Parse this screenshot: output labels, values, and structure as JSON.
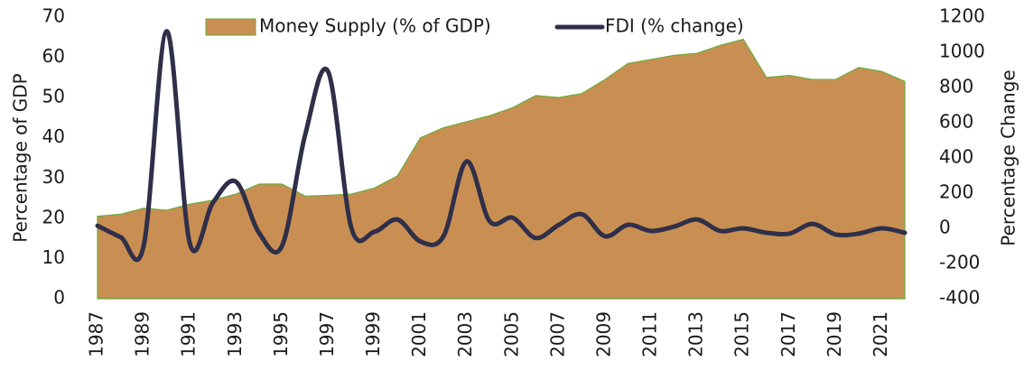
{
  "chart_data": {
    "type": "combo",
    "y_label": "Percentage of GDP",
    "y2_label": "Percentage Change",
    "categories": [
      "1987",
      null,
      "1989",
      null,
      "1991",
      null,
      "1993",
      null,
      "1995",
      null,
      "1997",
      null,
      "1999",
      null,
      "2001",
      null,
      "2003",
      null,
      "2005",
      null,
      "2007",
      null,
      "2009",
      null,
      "2011",
      null,
      "2013",
      null,
      "2015",
      null,
      "2017",
      null,
      "2019",
      null,
      "2021",
      null
    ],
    "series": [
      {
        "name": "Money Supply (% of GDP)",
        "type": "area",
        "color": "#c98f52",
        "edge_color": "#6aaa3a",
        "values": [
          20.5,
          21,
          22.5,
          22,
          23.5,
          24.5,
          26,
          28.5,
          28.5,
          25.5,
          25.7,
          26,
          27.5,
          30.5,
          40,
          42.5,
          44,
          45.5,
          47.5,
          50.5,
          50,
          51,
          54.5,
          58.5,
          59.5,
          60.5,
          61,
          63,
          64.5,
          55,
          55.5,
          54.5,
          54.5,
          57.5,
          56.5,
          54
        ]
      },
      {
        "name": "FDI (% change)",
        "type": "line",
        "axis": "y2",
        "color": "#2f2f4a",
        "values": [
          15,
          -50,
          -100,
          1120,
          -85,
          145,
          265,
          -25,
          -100,
          530,
          890,
          5,
          -20,
          50,
          -75,
          -45,
          380,
          40,
          60,
          -55,
          20,
          80,
          -45,
          20,
          -15,
          10,
          50,
          -15,
          0,
          -25,
          -30,
          25,
          -35,
          -30,
          0,
          -25
        ]
      }
    ],
    "ylim": [
      0,
      70
    ],
    "yticks": [
      0,
      10,
      20,
      30,
      40,
      50,
      60,
      70
    ],
    "y2lim": [
      -400,
      1200
    ],
    "y2ticks": [
      -400,
      -200,
      0,
      200,
      400,
      600,
      800,
      1000,
      1200
    ],
    "legend": "top"
  }
}
